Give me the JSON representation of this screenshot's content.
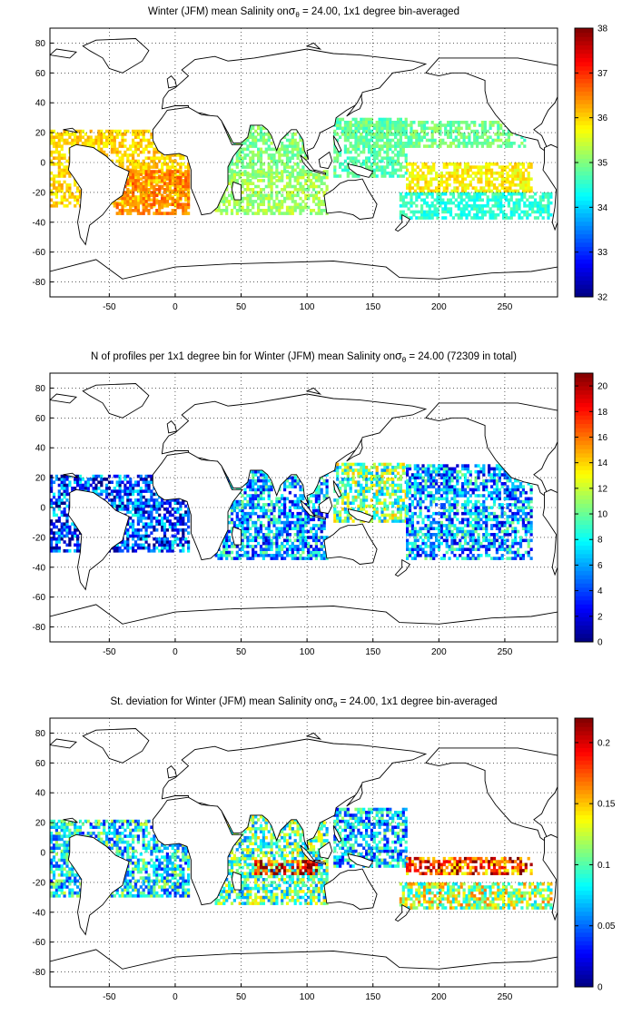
{
  "figure": {
    "panels_count": 3,
    "map_projection": "equirectangular",
    "grid": "dotted",
    "coastlines": "black"
  },
  "chart_data": [
    {
      "type": "heatmap",
      "title_prefix": "Winter (JFM) mean Salinity on",
      "title_symbol": "σ",
      "title_subscript": "θ",
      "title_suffix": " = 24.00, 1x1 degree bin-averaged",
      "xlim": [
        -95,
        290
      ],
      "ylim": [
        -90,
        90
      ],
      "x_ticks": [
        "-50",
        "0",
        "50",
        "100",
        "150",
        "200",
        "250"
      ],
      "y_ticks": [
        "80",
        "60",
        "40",
        "20",
        "0",
        "-20",
        "-40",
        "-60",
        "-80"
      ],
      "colorbar": {
        "min": 32,
        "max": 38,
        "ticks": [
          "32",
          "33",
          "34",
          "35",
          "36",
          "37",
          "38"
        ],
        "colormap": "jet"
      },
      "regions": [
        {
          "name": "tropical-atlantic",
          "lon": [
            -95,
            10
          ],
          "lat": [
            -30,
            22
          ],
          "value": 36.0
        },
        {
          "name": "south-atlantic",
          "lon": [
            -45,
            10
          ],
          "lat": [
            -35,
            -5
          ],
          "value": 36.5
        },
        {
          "name": "north-indian",
          "lon": [
            40,
            100
          ],
          "lat": [
            -10,
            25
          ],
          "value": 35.0
        },
        {
          "name": "south-indian",
          "lon": [
            30,
            115
          ],
          "lat": [
            -35,
            -5
          ],
          "value": 35.2
        },
        {
          "name": "western-pacific",
          "lon": [
            120,
            175
          ],
          "lat": [
            -10,
            30
          ],
          "value": 34.8
        },
        {
          "name": "central-pacific",
          "lon": [
            175,
            270
          ],
          "lat": [
            -20,
            0
          ],
          "value": 35.8
        },
        {
          "name": "north-pacific",
          "lon": [
            130,
            265
          ],
          "lat": [
            10,
            28
          ],
          "value": 34.9
        },
        {
          "name": "south-pacific",
          "lon": [
            170,
            285
          ],
          "lat": [
            -38,
            -20
          ],
          "value": 34.5
        }
      ]
    },
    {
      "type": "heatmap",
      "title_prefix": "N of profiles per 1x1 degree bin for Winter (JFM) mean Salinity on",
      "title_symbol": "σ",
      "title_subscript": "θ",
      "title_suffix": " = 24.00 (72309 in total)",
      "xlim": [
        -95,
        290
      ],
      "ylim": [
        -90,
        90
      ],
      "x_ticks": [
        "-50",
        "0",
        "50",
        "100",
        "150",
        "200",
        "250"
      ],
      "y_ticks": [
        "80",
        "60",
        "40",
        "20",
        "0",
        "-20",
        "-40",
        "-60",
        "-80"
      ],
      "colorbar": {
        "min": 0,
        "max": 21,
        "ticks": [
          "0",
          "2",
          "4",
          "6",
          "8",
          "10",
          "12",
          "14",
          "16",
          "18",
          "20"
        ],
        "colormap": "jet"
      },
      "regions": [
        {
          "name": "tropical-atlantic",
          "lon": [
            -95,
            10
          ],
          "lat": [
            -30,
            22
          ],
          "value": 4
        },
        {
          "name": "indian",
          "lon": [
            30,
            115
          ],
          "lat": [
            -35,
            25
          ],
          "value": 6
        },
        {
          "name": "western-pacific",
          "lon": [
            120,
            175
          ],
          "lat": [
            -10,
            30
          ],
          "value": 10
        },
        {
          "name": "central-pacific",
          "lon": [
            175,
            270
          ],
          "lat": [
            -35,
            28
          ],
          "value": 6
        }
      ]
    },
    {
      "type": "heatmap",
      "title_prefix": "St. deviation for Winter (JFM) mean Salinity on",
      "title_symbol": "σ",
      "title_subscript": "θ",
      "title_suffix": " = 24.00, 1x1 degree bin-averaged",
      "xlim": [
        -95,
        290
      ],
      "ylim": [
        -90,
        90
      ],
      "x_ticks": [
        "-50",
        "0",
        "50",
        "100",
        "150",
        "200",
        "250"
      ],
      "y_ticks": [
        "80",
        "60",
        "40",
        "20",
        "0",
        "-20",
        "-40",
        "-60",
        "-80"
      ],
      "colorbar": {
        "min": 0,
        "max": 0.22,
        "ticks": [
          "0",
          "0.05",
          "0.1",
          "0.15",
          "0.2"
        ],
        "colormap": "jet"
      },
      "regions": [
        {
          "name": "tropical-atlantic",
          "lon": [
            -95,
            10
          ],
          "lat": [
            -30,
            22
          ],
          "value": 0.08
        },
        {
          "name": "indian",
          "lon": [
            30,
            115
          ],
          "lat": [
            -35,
            25
          ],
          "value": 0.1
        },
        {
          "name": "equatorial-indian-band",
          "lon": [
            60,
            110
          ],
          "lat": [
            -15,
            -5
          ],
          "value": 0.2
        },
        {
          "name": "western-pacific",
          "lon": [
            120,
            175
          ],
          "lat": [
            -10,
            30
          ],
          "value": 0.07
        },
        {
          "name": "south-equatorial-pacific",
          "lon": [
            175,
            270
          ],
          "lat": [
            -15,
            -3
          ],
          "value": 0.18
        },
        {
          "name": "south-pacific",
          "lon": [
            170,
            285
          ],
          "lat": [
            -38,
            -20
          ],
          "value": 0.12
        }
      ]
    }
  ]
}
